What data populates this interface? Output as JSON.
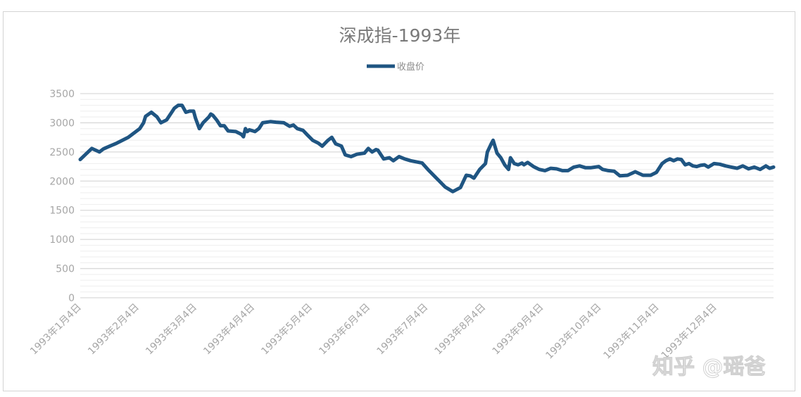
{
  "chart_data": {
    "type": "line",
    "title": "深成指-1993年",
    "legend": {
      "position": "top-center"
    },
    "grid": true,
    "ylim": [
      0,
      3500
    ],
    "y_ticks": [
      "0",
      "500",
      "1000",
      "1500",
      "2000",
      "2500",
      "3000",
      "3500"
    ],
    "x_tick_labels": [
      "1993年1月4日",
      "1993年2月4日",
      "1993年3月4日",
      "1993年4月4日",
      "1993年5月4日",
      "1993年6月4日",
      "1993年7月4日",
      "1993年8月4日",
      "1993年9月4日",
      "1993年10月4日",
      "1993年11月4日",
      "1993年12月4日"
    ],
    "x_range": [
      "1993-01-04",
      "1993-12-31"
    ],
    "series": [
      {
        "name": "收盘价",
        "color": "#1f5582",
        "x": [
          "1993-01-04",
          "1993-01-10",
          "1993-01-14",
          "1993-01-16",
          "1993-01-18",
          "1993-01-23",
          "1993-01-29",
          "1993-02-04",
          "1993-02-06",
          "1993-02-07",
          "1993-02-10",
          "1993-02-13",
          "1993-02-15",
          "1993-02-18",
          "1993-02-21",
          "1993-02-22",
          "1993-02-24",
          "1993-02-26",
          "1993-02-28",
          "1993-03-02",
          "1993-03-04",
          "1993-03-05",
          "1993-03-07",
          "1993-03-09",
          "1993-03-12",
          "1993-03-13",
          "1993-03-14",
          "1993-03-16",
          "1993-03-18",
          "1993-03-20",
          "1993-03-22",
          "1993-03-26",
          "1993-03-29",
          "1993-03-30",
          "1993-03-31",
          "1993-04-01",
          "1993-04-02",
          "1993-04-05",
          "1993-04-07",
          "1993-04-09",
          "1993-04-13",
          "1993-04-16",
          "1993-04-20",
          "1993-04-23",
          "1993-04-25",
          "1993-04-27",
          "1993-04-30",
          "1993-05-02",
          "1993-05-05",
          "1993-05-08",
          "1993-05-10",
          "1993-05-13",
          "1993-05-15",
          "1993-05-17",
          "1993-05-20",
          "1993-05-22",
          "1993-05-25",
          "1993-05-28",
          "1993-06-01",
          "1993-06-03",
          "1993-06-05",
          "1993-06-07",
          "1993-06-08",
          "1993-06-11",
          "1993-06-14",
          "1993-06-16",
          "1993-06-19",
          "1993-06-22",
          "1993-06-25",
          "1993-06-28",
          "1993-07-01",
          "1993-07-04",
          "1993-07-07",
          "1993-07-10",
          "1993-07-13",
          "1993-07-17",
          "1993-07-21",
          "1993-07-24",
          "1993-07-26",
          "1993-07-28",
          "1993-07-31",
          "1993-08-03",
          "1993-08-04",
          "1993-08-06",
          "1993-08-07",
          "1993-08-09",
          "1993-08-11",
          "1993-08-13",
          "1993-08-15",
          "1993-08-16",
          "1993-08-18",
          "1993-08-20",
          "1993-08-22",
          "1993-08-23",
          "1993-08-25",
          "1993-08-28",
          "1993-08-31",
          "1993-09-03",
          "1993-09-06",
          "1993-09-09",
          "1993-09-12",
          "1993-09-15",
          "1993-09-18",
          "1993-09-21",
          "1993-09-24",
          "1993-09-27",
          "1993-10-01",
          "1993-10-03",
          "1993-10-06",
          "1993-10-09",
          "1993-10-12",
          "1993-10-16",
          "1993-10-20",
          "1993-10-24",
          "1993-10-28",
          "1993-10-31",
          "1993-11-01",
          "1993-11-03",
          "1993-11-05",
          "1993-11-07",
          "1993-11-09",
          "1993-11-11",
          "1993-11-13",
          "1993-11-15",
          "1993-11-17",
          "1993-11-19",
          "1993-11-21",
          "1993-11-23",
          "1993-11-25",
          "1993-11-27",
          "1993-11-30",
          "1993-12-03",
          "1993-12-06",
          "1993-12-09",
          "1993-12-12",
          "1993-12-15",
          "1993-12-18",
          "1993-12-21",
          "1993-12-24",
          "1993-12-27",
          "1993-12-29",
          "1993-12-31"
        ],
        "y": [
          2370,
          2560,
          2500,
          2550,
          2580,
          2650,
          2750,
          2900,
          3000,
          3110,
          3180,
          3100,
          3000,
          3050,
          3200,
          3250,
          3300,
          3300,
          3180,
          3200,
          3200,
          3080,
          2900,
          3000,
          3100,
          3150,
          3130,
          3050,
          2950,
          2950,
          2860,
          2850,
          2800,
          2760,
          2900,
          2850,
          2880,
          2850,
          2900,
          3000,
          3020,
          3010,
          3000,
          2940,
          2960,
          2900,
          2870,
          2800,
          2700,
          2650,
          2600,
          2700,
          2750,
          2640,
          2600,
          2450,
          2420,
          2460,
          2480,
          2560,
          2500,
          2540,
          2530,
          2380,
          2400,
          2350,
          2420,
          2380,
          2350,
          2330,
          2310,
          2200,
          2100,
          2000,
          1900,
          1820,
          1890,
          2100,
          2090,
          2050,
          2200,
          2300,
          2500,
          2640,
          2700,
          2480,
          2400,
          2280,
          2200,
          2400,
          2300,
          2280,
          2310,
          2280,
          2320,
          2250,
          2200,
          2180,
          2220,
          2210,
          2180,
          2180,
          2240,
          2260,
          2230,
          2230,
          2250,
          2200,
          2180,
          2170,
          2090,
          2100,
          2160,
          2100,
          2100,
          2150,
          2200,
          2300,
          2350,
          2380,
          2350,
          2380,
          2370,
          2280,
          2300,
          2260,
          2250,
          2270,
          2280,
          2240,
          2300,
          2290,
          2260,
          2240,
          2220,
          2260,
          2210,
          2240,
          2200,
          2260,
          2220,
          2240
        ]
      }
    ]
  },
  "watermark": "知乎 @瑶爸"
}
